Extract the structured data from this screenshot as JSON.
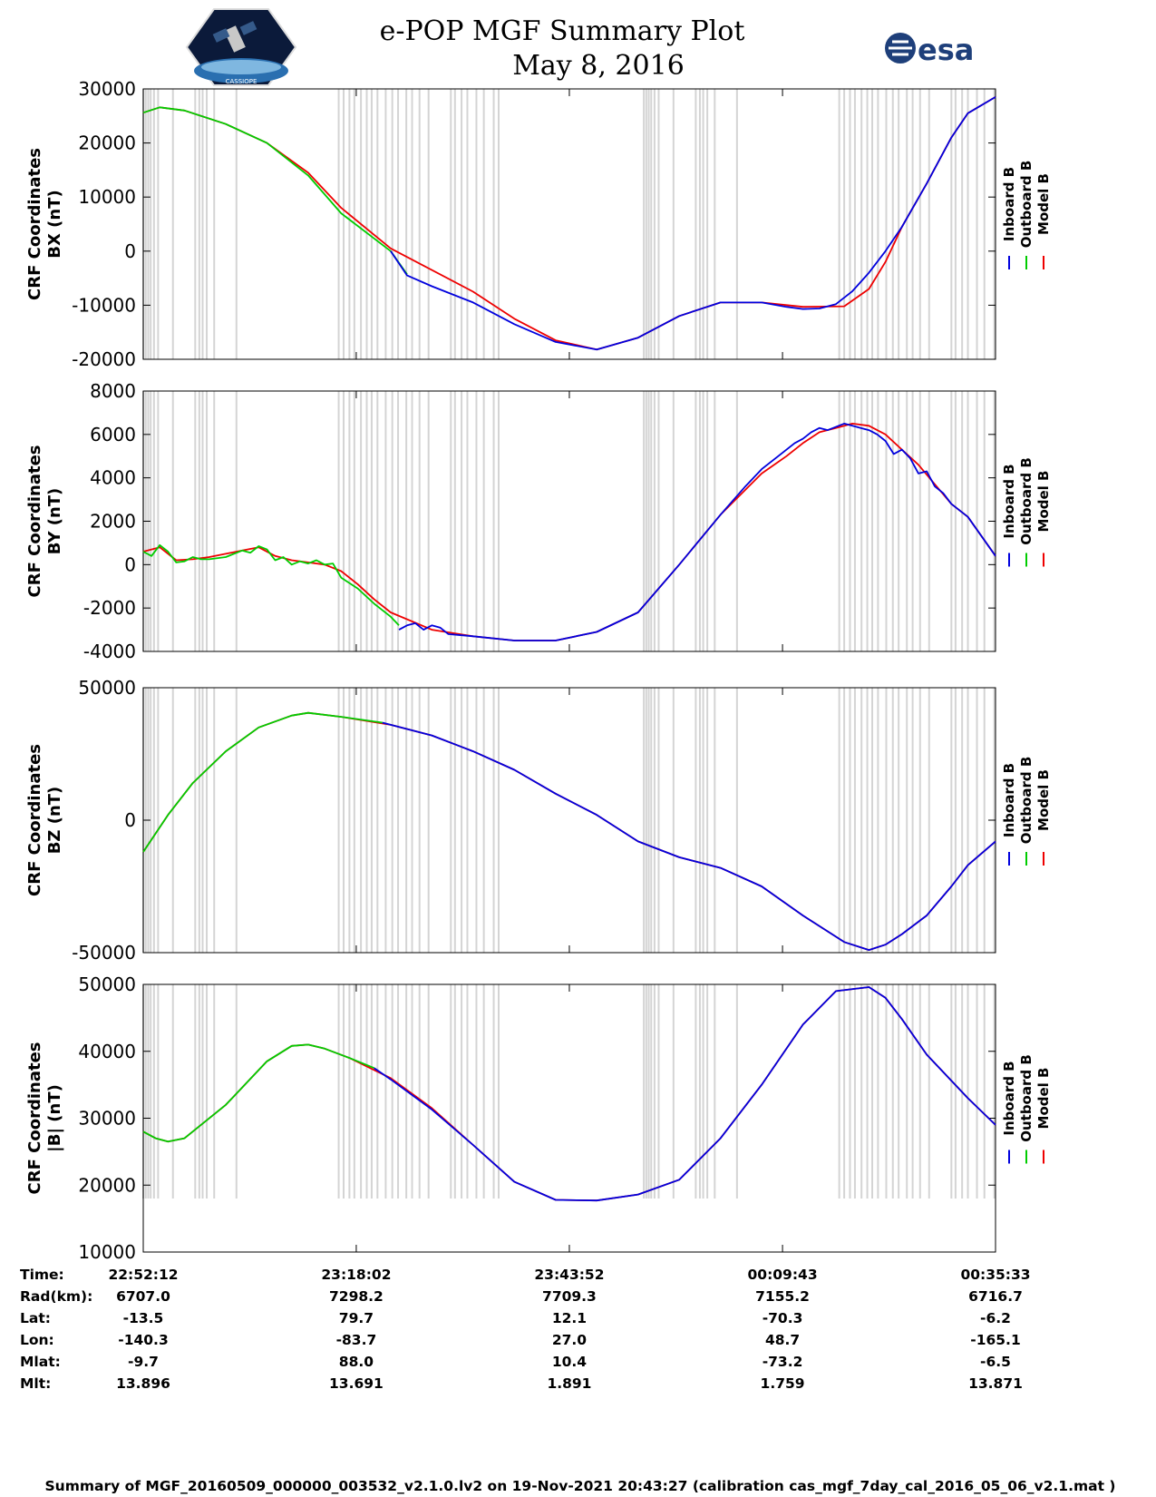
{
  "header": {
    "title": "e-POP MGF Summary Plot",
    "date": "May 8, 2016",
    "left_logo": "cassiope-mission-logo",
    "left_logo_text": "CASSIOPE",
    "right_logo": "esa-logo",
    "right_logo_text": "esa"
  },
  "colors": {
    "inboard": "#0000dd",
    "outboard": "#00cc00",
    "model": "#ee0000",
    "gap": "#d4d4d4",
    "axis": "#000000"
  },
  "legend": [
    "Inboard B",
    "Outboard B",
    "Model B"
  ],
  "data_gaps": {
    "left": [
      0.0,
      0.3,
      0.6,
      0.9,
      1.3,
      1.8,
      3.6,
      6.3,
      6.8,
      7.2,
      7.7,
      8.6,
      11.3,
      23.7,
      24.3,
      25.0,
      25.6,
      26.4,
      27.1,
      27.7,
      28.4,
      29.4,
      30.2,
      30.9,
      31.9,
      32.6,
      33.5,
      34.6,
      37.3,
      37.8,
      38.6,
      39.3,
      40.4,
      41.3,
      42.5,
      43.1
    ],
    "right": [
      0.0,
      0.3,
      0.6,
      0.9,
      1.3,
      1.8,
      3.6,
      6.3,
      6.8,
      7.2,
      7.7,
      8.6,
      11.3,
      23.7,
      24.3,
      25.0,
      25.6,
      26.4,
      27.1,
      27.7,
      28.4,
      29.4,
      30.2,
      30.9,
      31.9,
      32.6,
      33.5,
      34.6,
      37.3,
      37.8,
      38.6,
      39.3,
      40.4,
      41.3,
      42.5,
      43.1
    ]
  },
  "chart_data": [
    {
      "type": "line",
      "panel": "bx",
      "ylabel": [
        "CRF Coordinates",
        "BX (nT)"
      ],
      "ylim": [
        -20000,
        30000
      ],
      "yticks": [
        30000,
        20000,
        10000,
        0,
        -10000,
        -20000
      ],
      "xlim": [
        0,
        103.35
      ],
      "x_unit": "minutes since 22:52:12",
      "gap_bottom": -20000,
      "series": [
        {
          "name": "Model B",
          "color": "#ee0000",
          "x": [
            0,
            2,
            5,
            10,
            15,
            20,
            24,
            30,
            40,
            45,
            50,
            55,
            60,
            65,
            70,
            75,
            80,
            85,
            88,
            90,
            92,
            95,
            98,
            100,
            103.35
          ],
          "y": [
            25600,
            26600,
            26000,
            23500,
            20000,
            14500,
            8000,
            500,
            -7500,
            -12500,
            -16500,
            -18200,
            -16000,
            -12000,
            -9500,
            -9500,
            -10300,
            -10200,
            -7000,
            -2000,
            4500,
            12500,
            21000,
            25500,
            28500
          ]
        },
        {
          "name": "Outboard B",
          "color": "#00cc00",
          "x": [
            0,
            2,
            5,
            10,
            15,
            20,
            24,
            30,
            32
          ],
          "y": [
            25600,
            26600,
            26000,
            23500,
            20000,
            14000,
            7000,
            0,
            -4300
          ]
        },
        {
          "name": "Inboard B",
          "color": "#0000dd",
          "x": [
            30,
            32,
            35,
            40,
            45,
            50,
            55,
            60,
            65,
            70,
            75,
            78,
            80,
            82,
            84,
            86,
            88,
            90,
            92,
            95,
            98,
            100,
            103.35
          ],
          "y": [
            0,
            -4500,
            -6500,
            -9500,
            -13500,
            -16800,
            -18200,
            -16000,
            -12000,
            -9500,
            -9500,
            -10300,
            -10700,
            -10600,
            -9800,
            -7400,
            -4000,
            0,
            4500,
            12500,
            21000,
            25500,
            28500
          ]
        }
      ]
    },
    {
      "type": "line",
      "panel": "by",
      "ylabel": [
        "CRF Coordinates",
        "BY (nT)"
      ],
      "ylim": [
        -4000,
        8000
      ],
      "yticks": [
        8000,
        6000,
        4000,
        2000,
        0,
        -2000,
        -4000
      ],
      "xlim": [
        0,
        103.35
      ],
      "x_unit": "minutes since 22:52:12",
      "gap_bottom": -4000,
      "series": [
        {
          "name": "Model B",
          "color": "#ee0000",
          "x": [
            0,
            2,
            4,
            6,
            8,
            10,
            12,
            14,
            16,
            18,
            20,
            22,
            24,
            26,
            28,
            30,
            35,
            40,
            45,
            50,
            55,
            60,
            65,
            70,
            75,
            78,
            80,
            82,
            84,
            86,
            88,
            90,
            92,
            94,
            96,
            98,
            100,
            103.35
          ],
          "y": [
            600,
            800,
            200,
            250,
            350,
            500,
            650,
            800,
            400,
            200,
            100,
            0,
            -300,
            -900,
            -1600,
            -2200,
            -3000,
            -3300,
            -3500,
            -3500,
            -3100,
            -2200,
            0,
            2300,
            4200,
            5000,
            5600,
            6100,
            6300,
            6500,
            6400,
            6000,
            5300,
            4600,
            3700,
            2800,
            2200,
            400
          ]
        },
        {
          "name": "Outboard B",
          "color": "#00cc00",
          "x": [
            0,
            1,
            2,
            3,
            4,
            5,
            6,
            7,
            8,
            10,
            12,
            13,
            14,
            15,
            16,
            17,
            18,
            19,
            20,
            21,
            22,
            23,
            24,
            26,
            28,
            30,
            31
          ],
          "y": [
            600,
            400,
            900,
            600,
            100,
            150,
            350,
            250,
            250,
            350,
            650,
            550,
            850,
            700,
            200,
            350,
            0,
            150,
            50,
            200,
            0,
            50,
            -600,
            -1100,
            -1800,
            -2400,
            -2800
          ]
        },
        {
          "name": "Inboard B",
          "color": "#0000dd",
          "x": [
            31,
            32,
            33,
            34,
            35,
            36,
            37,
            40,
            45,
            50,
            55,
            60,
            65,
            70,
            73,
            75,
            77,
            79,
            80,
            81,
            82,
            83,
            85,
            86,
            87,
            88,
            89,
            90,
            91,
            92,
            93,
            94,
            95,
            96,
            97,
            98,
            100,
            103.35
          ],
          "y": [
            -3000,
            -2800,
            -2700,
            -3000,
            -2800,
            -2900,
            -3200,
            -3300,
            -3500,
            -3500,
            -3100,
            -2200,
            0,
            2300,
            3600,
            4400,
            5000,
            5600,
            5800,
            6100,
            6300,
            6200,
            6500,
            6400,
            6300,
            6200,
            6000,
            5700,
            5100,
            5300,
            4900,
            4200,
            4300,
            3600,
            3300,
            2800,
            2200,
            400
          ]
        }
      ]
    },
    {
      "type": "line",
      "panel": "bz",
      "ylabel": [
        "CRF Coordinates",
        "BZ (nT)"
      ],
      "ylim": [
        -50000,
        50000
      ],
      "yticks": [
        50000,
        0,
        -50000
      ],
      "xlim": [
        0,
        103.35
      ],
      "x_unit": "minutes since 22:52:12",
      "gap_bottom": -50000,
      "series": [
        {
          "name": "Model B",
          "color": "#ee0000",
          "x": [
            0,
            3,
            6,
            10,
            14,
            18,
            20,
            24,
            30,
            35,
            40,
            45,
            50,
            55,
            60,
            65,
            70,
            75,
            80,
            85,
            88,
            90,
            92,
            95,
            98,
            100,
            103.35
          ],
          "y": [
            -12000,
            2000,
            14000,
            26000,
            35000,
            39500,
            40500,
            39000,
            36000,
            32000,
            26000,
            19000,
            10000,
            2000,
            -8000,
            -14000,
            -18000,
            -25000,
            -36000,
            -46000,
            -49000,
            -47000,
            -43000,
            -36000,
            -25000,
            -17000,
            -8000
          ]
        },
        {
          "name": "Outboard B",
          "color": "#00cc00",
          "x": [
            0,
            3,
            6,
            10,
            14,
            18,
            20,
            24,
            29
          ],
          "y": [
            -12000,
            2000,
            14000,
            26000,
            35000,
            39500,
            40500,
            39000,
            36800
          ]
        },
        {
          "name": "Inboard B",
          "color": "#0000dd",
          "x": [
            29,
            35,
            40,
            45,
            50,
            55,
            60,
            65,
            70,
            75,
            80,
            85,
            88,
            90,
            92,
            95,
            98,
            100,
            103.35
          ],
          "y": [
            36800,
            32000,
            26000,
            19000,
            10000,
            2000,
            -8000,
            -14000,
            -18000,
            -25000,
            -36000,
            -46000,
            -49000,
            -47000,
            -43000,
            -36000,
            -25000,
            -17000,
            -8000
          ]
        }
      ]
    },
    {
      "type": "line",
      "panel": "bmag",
      "ylabel": [
        "CRF Coordinates",
        "|B| (nT)"
      ],
      "ylim": [
        10000,
        50000
      ],
      "yticks": [
        50000,
        40000,
        30000,
        20000,
        10000
      ],
      "xlim": [
        0,
        103.35
      ],
      "x_unit": "minutes since 22:52:12",
      "gap_bottom": 18000,
      "series": [
        {
          "name": "Model B",
          "color": "#ee0000",
          "x": [
            0,
            1.5,
            3,
            5,
            10,
            15,
            18,
            20,
            22,
            25,
            30,
            35,
            40,
            45,
            50,
            55,
            60,
            65,
            70,
            75,
            80,
            84,
            88,
            90,
            92,
            95,
            100,
            103.35
          ],
          "y": [
            28000,
            27000,
            26500,
            27000,
            32000,
            38500,
            40800,
            41000,
            40400,
            39000,
            36000,
            31500,
            26000,
            20500,
            17800,
            17700,
            18600,
            20800,
            27000,
            35000,
            44000,
            49000,
            49600,
            48000,
            44800,
            39500,
            33000,
            29000
          ]
        },
        {
          "name": "Outboard B",
          "color": "#00cc00",
          "x": [
            0,
            1.5,
            3,
            5,
            10,
            15,
            18,
            20,
            22,
            25,
            28
          ],
          "y": [
            28000,
            27000,
            26500,
            27000,
            32000,
            38500,
            40800,
            41000,
            40400,
            39000,
            37500
          ]
        },
        {
          "name": "Inboard B",
          "color": "#0000dd",
          "x": [
            28,
            30,
            35,
            40,
            45,
            50,
            55,
            60,
            65,
            70,
            75,
            80,
            84,
            88,
            90,
            92,
            95,
            100,
            103.35
          ],
          "y": [
            37500,
            35800,
            31300,
            26000,
            20500,
            17800,
            17700,
            18600,
            20800,
            27000,
            35000,
            44000,
            49000,
            49600,
            48000,
            44800,
            39500,
            33000,
            29000
          ]
        }
      ]
    }
  ],
  "ephemeris": {
    "tick_minutes": [
      0,
      25.83,
      51.67,
      77.52,
      103.35
    ],
    "rows": [
      {
        "label": "Time:",
        "values": [
          "22:52:12",
          "23:18:02",
          "23:43:52",
          "00:09:43",
          "00:35:33"
        ]
      },
      {
        "label": "Rad(km):",
        "values": [
          "6707.0",
          "7298.2",
          "7709.3",
          "7155.2",
          "6716.7"
        ]
      },
      {
        "label": "Lat:",
        "values": [
          "-13.5",
          "79.7",
          "12.1",
          "-70.3",
          "-6.2"
        ]
      },
      {
        "label": "Lon:",
        "values": [
          "-140.3",
          "-83.7",
          "27.0",
          "48.7",
          "-165.1"
        ]
      },
      {
        "label": "Mlat:",
        "values": [
          "-9.7",
          "88.0",
          "10.4",
          "-73.2",
          "-6.5"
        ]
      },
      {
        "label": "Mlt:",
        "values": [
          "13.896",
          "13.691",
          "1.891",
          "1.759",
          "13.871"
        ]
      }
    ]
  },
  "footer": "Summary of MGF_20160509_000000_003532_v2.1.0.lv2 on 19-Nov-2021 20:43:27 (calibration cas_mgf_7day_cal_2016_05_06_v2.1.mat )"
}
